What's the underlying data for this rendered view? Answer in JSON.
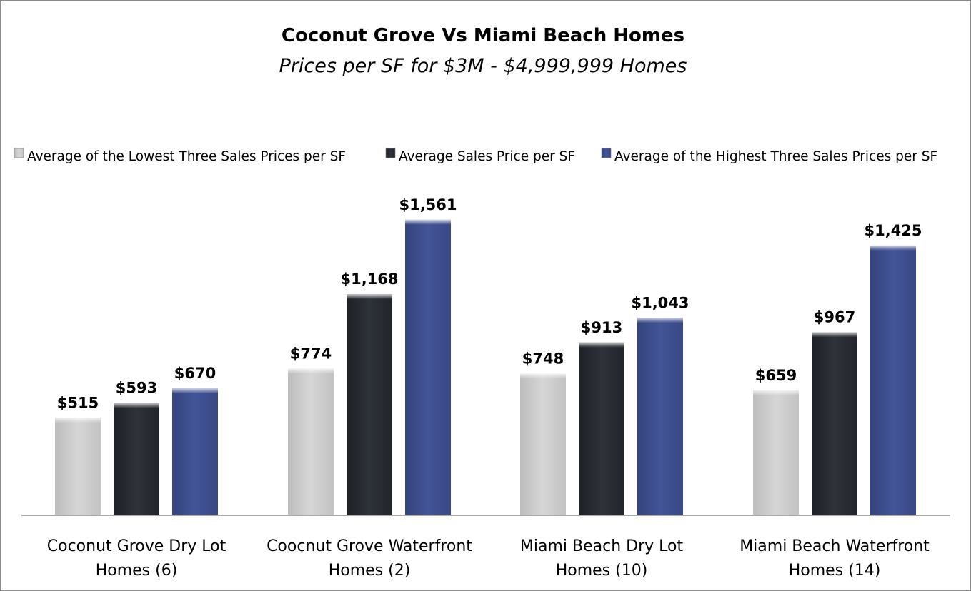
{
  "chart_data": {
    "type": "bar",
    "title": "Coconut Grove Vs Miami Beach Homes",
    "subtitle": "Prices per SF for $3M - $4,999,999 Homes",
    "categories": [
      [
        "Coconut Grove Dry Lot",
        "Homes (6)"
      ],
      [
        "Coocnut Grove Waterfront",
        "Homes (2)"
      ],
      [
        "Miami Beach Dry Lot",
        "Homes (10)"
      ],
      [
        "Miami Beach Waterfront",
        "Homes (14)"
      ]
    ],
    "series": [
      {
        "name": "Average of the Lowest Three Sales Prices per SF",
        "color": "#d0d0d0",
        "values": [
          515,
          774,
          748,
          659
        ],
        "labels": [
          "$515",
          "$774",
          "$748",
          "$659"
        ]
      },
      {
        "name": "Average Sales Price per SF",
        "color": "#2a2d33",
        "values": [
          593,
          1168,
          913,
          967
        ],
        "labels": [
          "$593",
          "$1,168",
          "$913",
          "$967"
        ]
      },
      {
        "name": "Average of the Highest Three Sales Prices per SF",
        "color": "#3f5090",
        "values": [
          670,
          1561,
          1043,
          1425
        ],
        "labels": [
          "$670",
          "$1,561",
          "$1,043",
          "$1,425"
        ]
      }
    ],
    "ylim": [
      0,
      1600
    ],
    "grid": false,
    "legend_position": "top",
    "value_axis_visible": false
  }
}
